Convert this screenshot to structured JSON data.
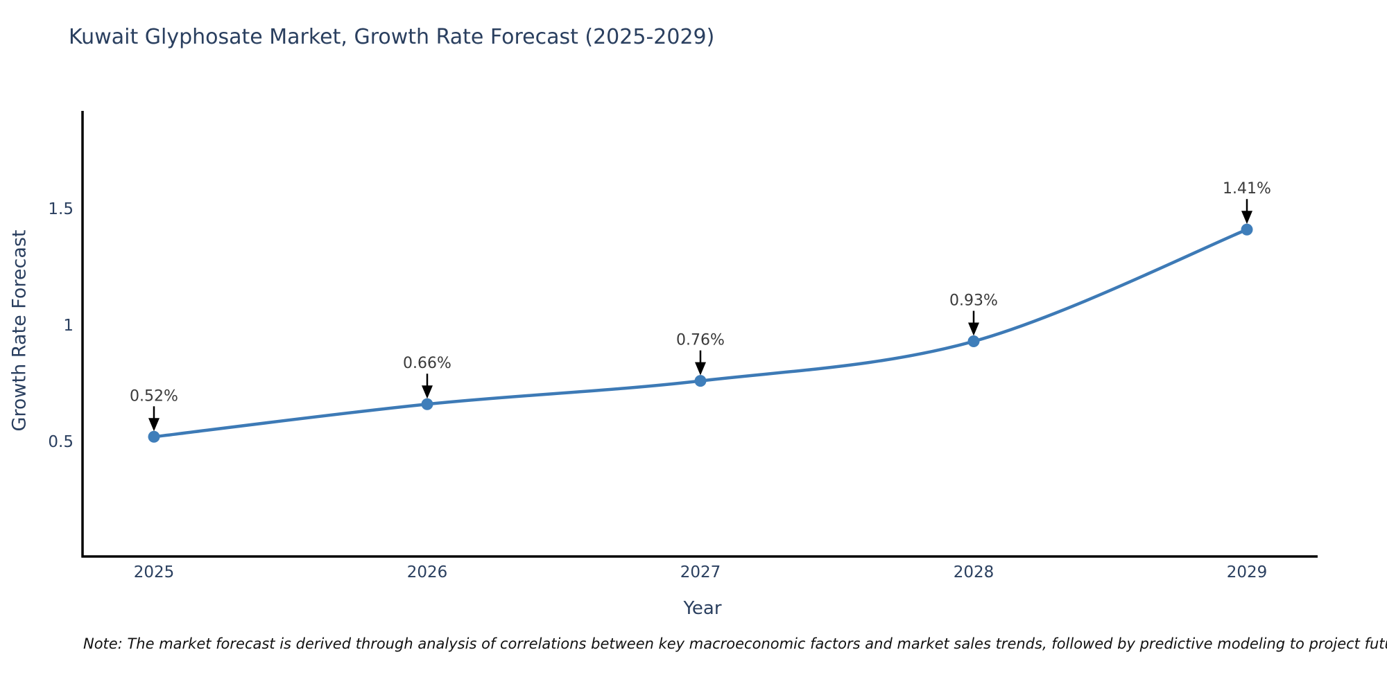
{
  "title": "Kuwait Glyphosate Market, Growth Rate Forecast (2025-2029)",
  "note": "Note: The market forecast is derived through analysis of correlations between key macroeconomic factors and market sales trends, followed by predictive modeling to project future sales",
  "colors": {
    "background": "#ffffff",
    "title_text": "#2a3f5f",
    "axis_text": "#2a3f5f",
    "axis_line": "#000000",
    "line": "#3d7ab6",
    "marker": "#3f7eba",
    "annotation_text": "#3a3a3a",
    "arrow": "#000000"
  },
  "chart_data": {
    "type": "line",
    "title": "Kuwait Glyphosate Market, Growth Rate Forecast (2025-2029)",
    "categories": [
      "2025",
      "2026",
      "2027",
      "2028",
      "2029"
    ],
    "values": [
      0.52,
      0.66,
      0.76,
      0.93,
      1.41
    ],
    "point_labels": [
      "0.52%",
      "0.66%",
      "0.76%",
      "0.93%",
      "1.41%"
    ],
    "xlabel": "Year",
    "ylabel": "Growth Rate Forecast",
    "yticks": [
      0.5,
      1,
      1.5
    ],
    "ytick_labels": [
      "0.5",
      "1",
      "1.5"
    ],
    "ylim": [
      0.01,
      1.92
    ],
    "grid": false,
    "legend": "none",
    "line_shape": "spline",
    "annotation_style": "value label with downward arrow to marker"
  }
}
